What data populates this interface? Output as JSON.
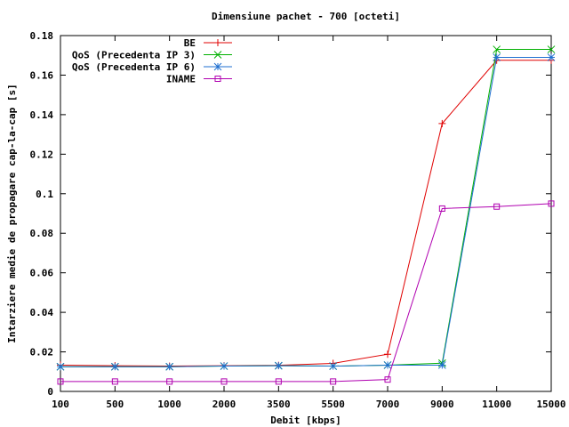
{
  "chart_data": {
    "type": "line",
    "title": "Dimensiune pachet - 700 [octeti]",
    "xlabel": "Debit [kbps]",
    "ylabel": "Intarziere medie de propagare cap-la-cap [s]",
    "categories": [
      "100",
      "500",
      "1000",
      "2000",
      "3500",
      "5500",
      "7000",
      "9000",
      "11000",
      "15000"
    ],
    "ylim": [
      0,
      0.18
    ],
    "yticks": [
      "0",
      "0.02",
      "0.04",
      "0.06",
      "0.08",
      "0.1",
      "0.12",
      "0.14",
      "0.16",
      "0.18"
    ],
    "grid": false,
    "legend_position": "top-right",
    "series": [
      {
        "name": "BE",
        "color": "#e00000",
        "marker": "plus",
        "values": [
          0.0133,
          0.013,
          0.0128,
          0.013,
          0.0132,
          0.0142,
          0.0188,
          0.1355,
          0.1675,
          0.1675
        ]
      },
      {
        "name": "QoS (Precedenta IP 3)",
        "color": "#00b000",
        "marker": "cross",
        "values": [
          0.0125,
          0.0125,
          0.0125,
          0.0128,
          0.013,
          0.0128,
          0.0133,
          0.0143,
          0.173,
          0.173
        ]
      },
      {
        "name": "QoS (Precedenta IP 6)",
        "color": "#1f6fd0",
        "marker": "star",
        "values": [
          0.0125,
          0.0125,
          0.0125,
          0.0128,
          0.013,
          0.0128,
          0.0133,
          0.0133,
          0.169,
          0.169
        ]
      },
      {
        "name": "INAME",
        "color": "#b000b0",
        "marker": "square",
        "values": [
          0.005,
          0.005,
          0.005,
          0.005,
          0.005,
          0.005,
          0.006,
          0.0925,
          0.0935,
          0.095
        ]
      }
    ]
  }
}
